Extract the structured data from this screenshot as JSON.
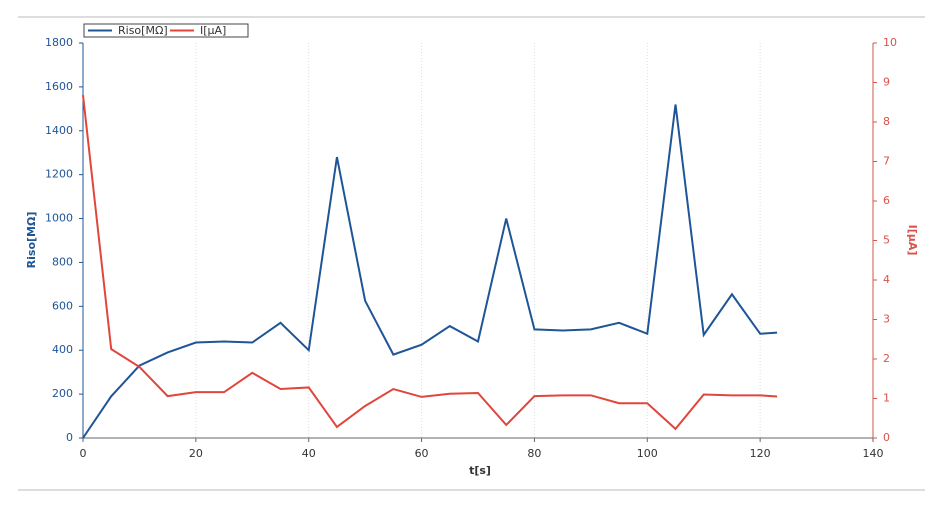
{
  "chart_data": {
    "type": "line",
    "x": [
      0,
      5,
      10,
      15,
      20,
      25,
      30,
      35,
      40,
      45,
      50,
      55,
      60,
      65,
      70,
      75,
      80,
      85,
      90,
      95,
      100,
      105,
      110,
      115,
      120,
      123
    ],
    "series": [
      {
        "name": "Riso[MΩ]",
        "color": "#1f5596",
        "values": [
          0,
          190,
          330,
          390,
          435,
          440,
          435,
          525,
          400,
          1280,
          625,
          380,
          425,
          510,
          440,
          1000,
          495,
          490,
          495,
          525,
          475,
          1520,
          470,
          655,
          475,
          480
        ]
      },
      {
        "name": "I[µA]",
        "color": "#e0463c",
        "axis": "y2",
        "values": [
          8.68,
          2.25,
          1.8,
          1.06,
          1.16,
          1.16,
          1.65,
          1.24,
          1.28,
          0.28,
          0.81,
          1.24,
          1.04,
          1.12,
          1.14,
          0.33,
          1.06,
          1.08,
          1.08,
          0.88,
          0.88,
          0.23,
          1.1,
          1.08,
          1.08,
          1.05
        ]
      }
    ],
    "xlabel": "t[s]",
    "ylabel": "Riso[MΩ]",
    "y2label": "I[µA]",
    "xlim": [
      0,
      140
    ],
    "xticks": [
      0,
      20,
      40,
      60,
      80,
      100,
      120,
      140
    ],
    "ylim": [
      0,
      1800
    ],
    "yticks": [
      0,
      200,
      400,
      600,
      800,
      1000,
      1200,
      1400,
      1600,
      1800
    ],
    "y2lim": [
      0,
      10
    ],
    "y2ticks": [
      0,
      1,
      2,
      3,
      4,
      5,
      6,
      7,
      8,
      9,
      10
    ],
    "grid": true
  }
}
